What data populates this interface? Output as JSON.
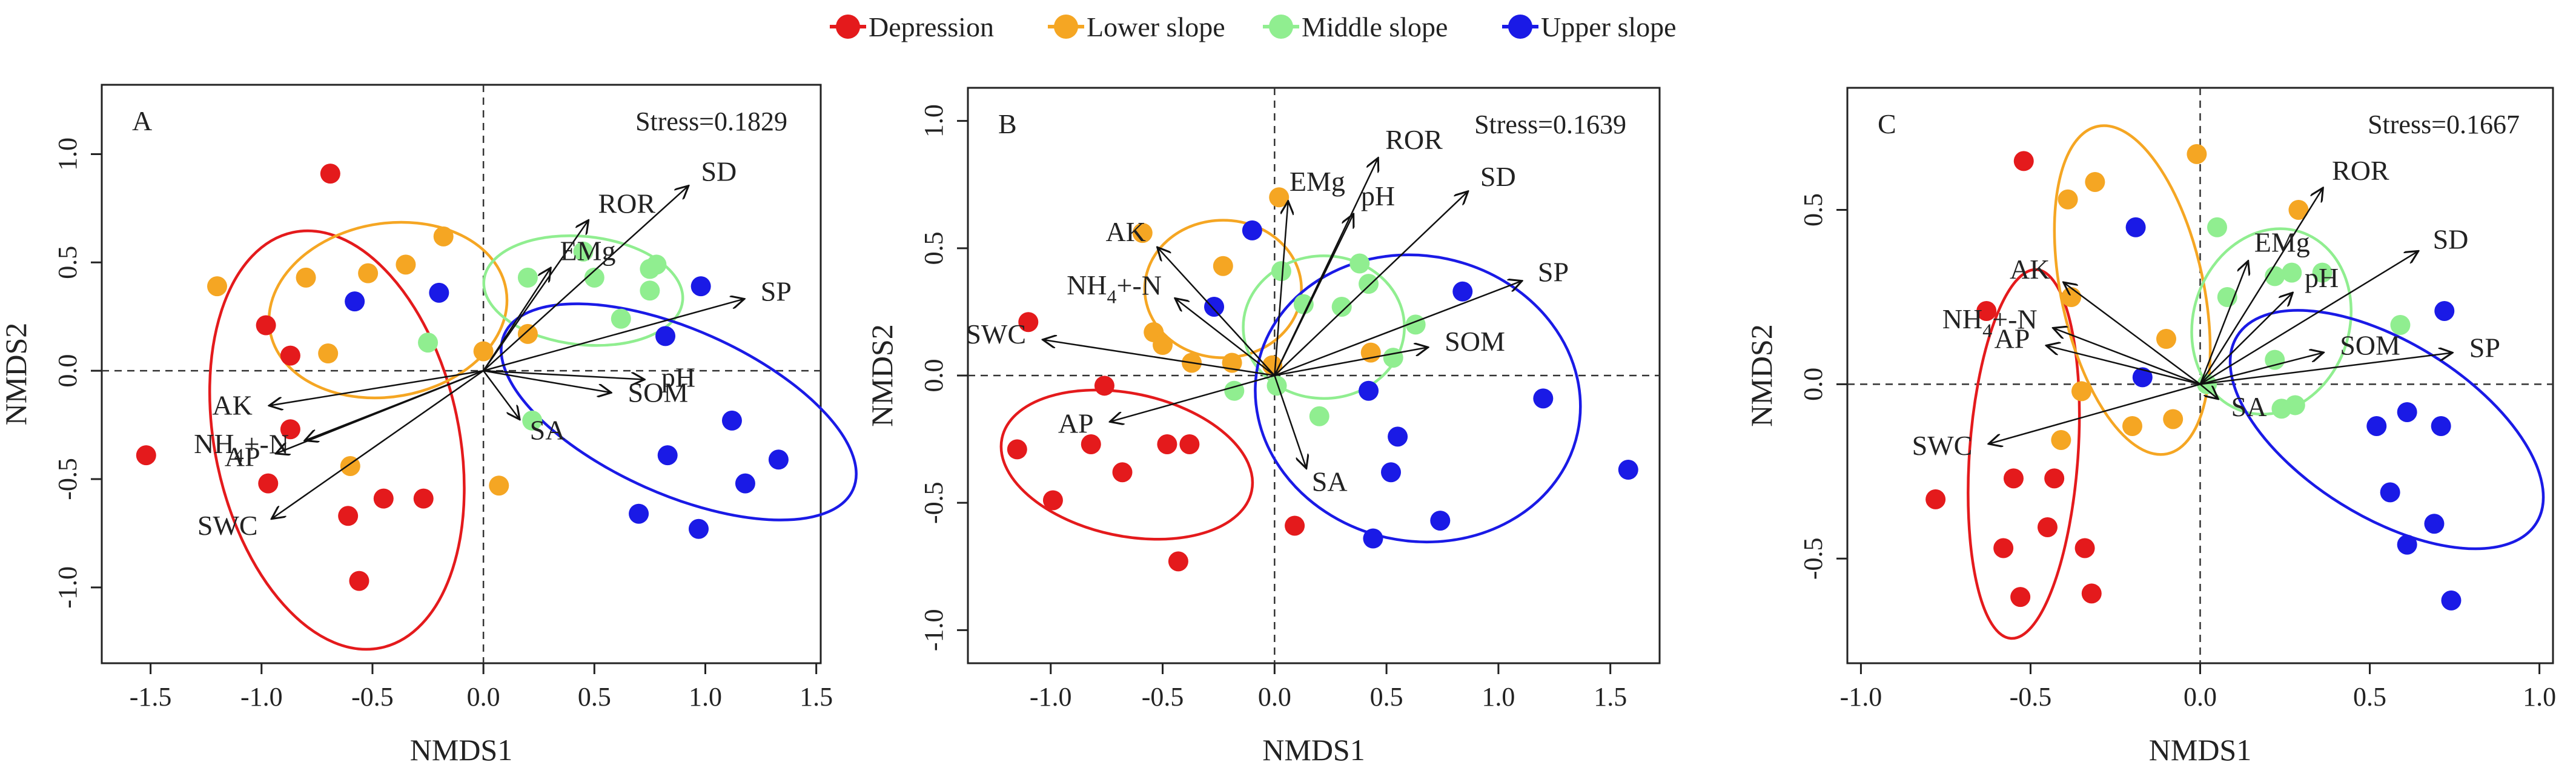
{
  "legend": {
    "items": [
      {
        "label": "Depression",
        "color": "#e41a1c"
      },
      {
        "label": "Lower slope",
        "color": "#f5a623"
      },
      {
        "label": "Middle slope",
        "color": "#90ee90"
      },
      {
        "label": "Upper slope",
        "color": "#1a1ae6"
      }
    ]
  },
  "chart_data": [
    {
      "type": "scatter",
      "panel_label": "A",
      "stress": "Stress=0.1829",
      "xlabel": "NMDS1",
      "ylabel": "NMDS2",
      "xlim": [
        -1.72,
        1.52
      ],
      "ylim": [
        -1.35,
        1.32
      ],
      "xticks": [
        -1.5,
        -1.0,
        -0.5,
        0.0,
        0.5,
        1.0,
        1.5
      ],
      "xtick_labels": [
        "-1.5",
        "-1.0",
        "-0.5",
        "0.0",
        "0.5",
        "1.0",
        "1.5"
      ],
      "yticks": [
        -1.0,
        -0.5,
        0.0,
        0.5,
        1.0
      ],
      "ytick_labels": [
        "-1.0",
        "-0.5",
        "0.0",
        "0.5",
        "1.0"
      ],
      "series": [
        {
          "name": "Depression",
          "color": "#e41a1c",
          "points": [
            [
              -0.69,
              0.91
            ],
            [
              -1.52,
              -0.39
            ],
            [
              -0.98,
              0.21
            ],
            [
              -0.87,
              0.07
            ],
            [
              -0.87,
              -0.27
            ],
            [
              -0.97,
              -0.52
            ],
            [
              -0.45,
              -0.59
            ],
            [
              -0.27,
              -0.59
            ],
            [
              -0.61,
              -0.67
            ],
            [
              -0.56,
              -0.97
            ]
          ]
        },
        {
          "name": "Lower slope",
          "color": "#f5a623",
          "points": [
            [
              -1.2,
              0.39
            ],
            [
              -0.8,
              0.43
            ],
            [
              -0.52,
              0.45
            ],
            [
              -0.35,
              0.49
            ],
            [
              -0.18,
              0.62
            ],
            [
              -0.7,
              0.08
            ],
            [
              0.0,
              0.09
            ],
            [
              0.2,
              0.17
            ],
            [
              -0.6,
              -0.44
            ],
            [
              0.07,
              -0.53
            ]
          ]
        },
        {
          "name": "Middle slope",
          "color": "#90ee90",
          "points": [
            [
              0.2,
              0.43
            ],
            [
              0.45,
              0.55
            ],
            [
              0.5,
              0.43
            ],
            [
              0.75,
              0.47
            ],
            [
              0.78,
              0.49
            ],
            [
              0.62,
              0.24
            ],
            [
              0.75,
              0.37
            ],
            [
              -0.25,
              0.13
            ],
            [
              0.22,
              -0.23
            ]
          ]
        },
        {
          "name": "Upper slope",
          "color": "#1a1ae6",
          "points": [
            [
              -0.58,
              0.32
            ],
            [
              -0.2,
              0.36
            ],
            [
              0.98,
              0.39
            ],
            [
              0.82,
              0.16
            ],
            [
              1.12,
              -0.23
            ],
            [
              1.33,
              -0.41
            ],
            [
              1.18,
              -0.52
            ],
            [
              0.83,
              -0.39
            ],
            [
              0.7,
              -0.66
            ],
            [
              0.97,
              -0.73
            ]
          ]
        }
      ],
      "ellipses": [
        {
          "group": "Depression",
          "color": "#e41a1c",
          "cx": -0.66,
          "cy": -0.32,
          "rx": 0.55,
          "ry": 0.98,
          "angle": 12
        },
        {
          "group": "Lower slope",
          "color": "#f5a623",
          "cx": -0.43,
          "cy": 0.28,
          "rx": 0.54,
          "ry": 0.4,
          "angle": 10
        },
        {
          "group": "Middle slope",
          "color": "#90ee90",
          "cx": 0.45,
          "cy": 0.37,
          "rx": 0.45,
          "ry": 0.25,
          "angle": -6
        },
        {
          "group": "Upper slope",
          "color": "#1a1ae6",
          "cx": 0.88,
          "cy": -0.19,
          "rx": 0.86,
          "ry": 0.38,
          "angle": -24
        }
      ],
      "vectors": [
        {
          "label": "SD",
          "x": 0.92,
          "y": 0.85
        },
        {
          "label": "ROR",
          "x": 0.47,
          "y": 0.69
        },
        {
          "label": "EMg",
          "x": 0.3,
          "y": 0.47
        },
        {
          "label": "SP",
          "x": 1.17,
          "y": 0.33
        },
        {
          "label": "pH",
          "x": 0.72,
          "y": -0.04
        },
        {
          "label": "SOM",
          "x": 0.57,
          "y": -0.1
        },
        {
          "label": "SA",
          "x": 0.16,
          "y": -0.22
        },
        {
          "label": "AK",
          "x": -0.96,
          "y": -0.16
        },
        {
          "label": "NH4+-N",
          "x": -0.8,
          "y": -0.32
        },
        {
          "label": "AP",
          "x": -0.93,
          "y": -0.38
        },
        {
          "label": "SWC",
          "x": -0.95,
          "y": -0.68
        }
      ]
    },
    {
      "type": "scatter",
      "panel_label": "B",
      "stress": "Stress=0.1639",
      "xlabel": "NMDS1",
      "ylabel": "NMDS2",
      "xlim": [
        -1.37,
        1.72
      ],
      "ylim": [
        -1.13,
        1.13
      ],
      "xticks": [
        -1.0,
        -0.5,
        0.0,
        0.5,
        1.0,
        1.5
      ],
      "xtick_labels": [
        "-1.0",
        "-0.5",
        "0.0",
        "0.5",
        "1.0",
        "1.5"
      ],
      "yticks": [
        -1.0,
        -0.5,
        0.0,
        0.5,
        1.0
      ],
      "ytick_labels": [
        "-1.0",
        "-0.5",
        "0.0",
        "0.5",
        "1.0"
      ],
      "series": [
        {
          "name": "Depression",
          "color": "#e41a1c",
          "points": [
            [
              -1.1,
              0.21
            ],
            [
              -0.76,
              -0.04
            ],
            [
              -1.15,
              -0.29
            ],
            [
              -0.82,
              -0.27
            ],
            [
              -0.48,
              -0.27
            ],
            [
              -0.38,
              -0.27
            ],
            [
              -0.68,
              -0.38
            ],
            [
              -0.99,
              -0.49
            ],
            [
              -0.43,
              -0.73
            ],
            [
              0.09,
              -0.59
            ]
          ]
        },
        {
          "name": "Lower slope",
          "color": "#f5a623",
          "points": [
            [
              0.02,
              0.7
            ],
            [
              -0.59,
              0.56
            ],
            [
              -0.23,
              0.43
            ],
            [
              -0.54,
              0.17
            ],
            [
              -0.5,
              0.12
            ],
            [
              -0.37,
              0.05
            ],
            [
              -0.19,
              0.05
            ],
            [
              -0.01,
              0.04
            ],
            [
              0.43,
              0.09
            ]
          ]
        },
        {
          "name": "Middle slope",
          "color": "#90ee90",
          "points": [
            [
              0.03,
              0.41
            ],
            [
              0.13,
              0.28
            ],
            [
              0.38,
              0.44
            ],
            [
              0.42,
              0.36
            ],
            [
              0.3,
              0.27
            ],
            [
              0.63,
              0.2
            ],
            [
              0.53,
              0.07
            ],
            [
              0.01,
              -0.04
            ],
            [
              0.2,
              -0.16
            ],
            [
              -0.18,
              -0.06
            ]
          ]
        },
        {
          "name": "Upper slope",
          "color": "#1a1ae6",
          "points": [
            [
              -0.1,
              0.57
            ],
            [
              -0.27,
              0.27
            ],
            [
              0.84,
              0.33
            ],
            [
              0.42,
              -0.06
            ],
            [
              0.55,
              -0.24
            ],
            [
              0.52,
              -0.38
            ],
            [
              0.74,
              -0.57
            ],
            [
              0.44,
              -0.64
            ],
            [
              1.2,
              -0.09
            ],
            [
              1.58,
              -0.37
            ]
          ]
        }
      ],
      "ellipses": [
        {
          "group": "Depression",
          "color": "#e41a1c",
          "cx": -0.66,
          "cy": -0.35,
          "rx": 0.57,
          "ry": 0.28,
          "angle": -12
        },
        {
          "group": "Lower slope",
          "color": "#f5a623",
          "cx": -0.23,
          "cy": 0.34,
          "rx": 0.35,
          "ry": 0.27,
          "angle": 0
        },
        {
          "group": "Middle slope",
          "color": "#90ee90",
          "cx": 0.22,
          "cy": 0.19,
          "rx": 0.36,
          "ry": 0.28,
          "angle": 0
        },
        {
          "group": "Upper slope",
          "color": "#1a1ae6",
          "cx": 0.64,
          "cy": -0.09,
          "rx": 0.73,
          "ry": 0.56,
          "angle": -12
        }
      ],
      "vectors": [
        {
          "label": "ROR",
          "x": 0.46,
          "y": 0.85
        },
        {
          "label": "EMg",
          "x": 0.06,
          "y": 0.68
        },
        {
          "label": "pH",
          "x": 0.35,
          "y": 0.63
        },
        {
          "label": "SD",
          "x": 0.86,
          "y": 0.72
        },
        {
          "label": "SP",
          "x": 1.1,
          "y": 0.37
        },
        {
          "label": "SOM",
          "x": 0.68,
          "y": 0.11
        },
        {
          "label": "SA",
          "x": 0.14,
          "y": -0.36
        },
        {
          "label": "AK",
          "x": -0.52,
          "y": 0.5
        },
        {
          "label": "NH4+-N",
          "x": -0.44,
          "y": 0.3
        },
        {
          "label": "SWC",
          "x": -1.03,
          "y": 0.14
        },
        {
          "label": "AP",
          "x": -0.73,
          "y": -0.18
        }
      ]
    },
    {
      "type": "scatter",
      "panel_label": "C",
      "stress": "Stress=0.1667",
      "xlabel": "NMDS1",
      "ylabel": "NMDS2",
      "xlim": [
        -1.04,
        1.04
      ],
      "ylim": [
        -0.8,
        0.85
      ],
      "xticks": [
        -1.0,
        -0.5,
        0.0,
        0.5,
        1.0
      ],
      "xtick_labels": [
        "-1.0",
        "-0.5",
        "0.0",
        "0.5",
        "1.0"
      ],
      "yticks": [
        -0.5,
        0.0,
        0.5
      ],
      "ytick_labels": [
        "-0.5",
        "0.0",
        "0.5"
      ],
      "series": [
        {
          "name": "Depression",
          "color": "#e41a1c",
          "points": [
            [
              -0.52,
              0.64
            ],
            [
              -0.63,
              0.21
            ],
            [
              -0.78,
              -0.33
            ],
            [
              -0.55,
              -0.27
            ],
            [
              -0.43,
              -0.27
            ],
            [
              -0.58,
              -0.47
            ],
            [
              -0.45,
              -0.41
            ],
            [
              -0.34,
              -0.47
            ],
            [
              -0.32,
              -0.6
            ],
            [
              -0.53,
              -0.61
            ]
          ]
        },
        {
          "name": "Lower slope",
          "color": "#f5a623",
          "points": [
            [
              -0.39,
              0.53
            ],
            [
              -0.31,
              0.58
            ],
            [
              -0.01,
              0.66
            ],
            [
              0.29,
              0.5
            ],
            [
              -0.38,
              0.25
            ],
            [
              -0.1,
              0.13
            ],
            [
              -0.35,
              -0.02
            ],
            [
              -0.41,
              -0.16
            ],
            [
              -0.2,
              -0.12
            ],
            [
              -0.08,
              -0.1
            ]
          ]
        },
        {
          "name": "Middle slope",
          "color": "#90ee90",
          "points": [
            [
              0.05,
              0.45
            ],
            [
              0.08,
              0.25
            ],
            [
              0.22,
              0.31
            ],
            [
              0.27,
              0.32
            ],
            [
              0.36,
              0.32
            ],
            [
              0.59,
              0.17
            ],
            [
              0.22,
              0.07
            ],
            [
              0.24,
              -0.07
            ],
            [
              0.28,
              -0.06
            ],
            [
              0.02,
              0.0
            ]
          ]
        },
        {
          "name": "Upper slope",
          "color": "#1a1ae6",
          "points": [
            [
              -0.19,
              0.45
            ],
            [
              0.72,
              0.21
            ],
            [
              -0.17,
              0.02
            ],
            [
              0.52,
              -0.12
            ],
            [
              0.61,
              -0.08
            ],
            [
              0.71,
              -0.12
            ],
            [
              0.56,
              -0.31
            ],
            [
              0.69,
              -0.4
            ],
            [
              0.61,
              -0.46
            ],
            [
              0.74,
              -0.62
            ]
          ]
        }
      ],
      "ellipses": [
        {
          "group": "Depression",
          "color": "#e41a1c",
          "cx": -0.52,
          "cy": -0.2,
          "rx": 0.16,
          "ry": 0.53,
          "angle": -4
        },
        {
          "group": "Lower slope",
          "color": "#f5a623",
          "cx": -0.2,
          "cy": 0.27,
          "rx": 0.21,
          "ry": 0.48,
          "angle": 12
        },
        {
          "group": "Middle slope",
          "color": "#90ee90",
          "cx": 0.21,
          "cy": 0.18,
          "rx": 0.23,
          "ry": 0.27,
          "angle": -18
        },
        {
          "group": "Upper slope",
          "color": "#1a1ae6",
          "cx": 0.55,
          "cy": -0.13,
          "rx": 0.52,
          "ry": 0.25,
          "angle": -32
        }
      ],
      "vectors": [
        {
          "label": "ROR",
          "x": 0.36,
          "y": 0.56
        },
        {
          "label": "SD",
          "x": 0.64,
          "y": 0.38
        },
        {
          "label": "SP",
          "x": 0.74,
          "y": 0.09
        },
        {
          "label": "SOM",
          "x": 0.36,
          "y": 0.09
        },
        {
          "label": "pH",
          "x": 0.27,
          "y": 0.26
        },
        {
          "label": "EMg",
          "x": 0.14,
          "y": 0.35
        },
        {
          "label": "SA",
          "x": 0.05,
          "y": -0.04
        },
        {
          "label": "AK",
          "x": -0.4,
          "y": 0.29
        },
        {
          "label": "NH4+-N",
          "x": -0.43,
          "y": 0.16
        },
        {
          "label": "AP",
          "x": -0.45,
          "y": 0.11
        },
        {
          "label": "SWC",
          "x": -0.62,
          "y": -0.17
        }
      ]
    }
  ]
}
